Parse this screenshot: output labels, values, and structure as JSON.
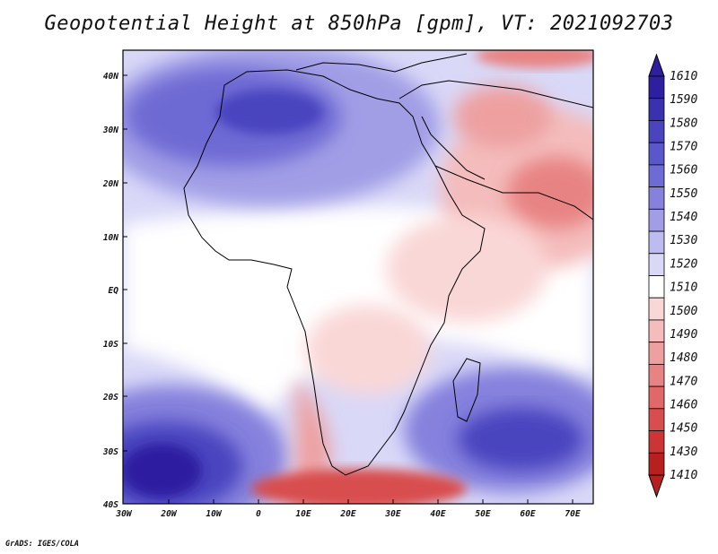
{
  "title": "Geopotential Height at 850hPa [gpm], VT: 2021092703",
  "footer": "GrADS: IGES/COLA",
  "map": {
    "lat_ticks": [
      "40N",
      "30N",
      "20N",
      "10N",
      "EQ",
      "10S",
      "20S",
      "30S",
      "40S"
    ],
    "lon_ticks": [
      "30W",
      "20W",
      "10W",
      "0",
      "10E",
      "20E",
      "30E",
      "40E",
      "50E",
      "60E",
      "70E"
    ]
  },
  "colorbar": {
    "levels": [
      "1610",
      "1590",
      "1580",
      "1570",
      "1560",
      "1550",
      "1540",
      "1530",
      "1520",
      "1510",
      "1500",
      "1490",
      "1480",
      "1470",
      "1460",
      "1450",
      "1430",
      "1410"
    ],
    "colors": [
      "#2e1fa0",
      "#3a31b0",
      "#4a44bf",
      "#5a57ca",
      "#6e6bd4",
      "#8581dd",
      "#a19ee6",
      "#bdbbef",
      "#d9d8f7",
      "#ffffff",
      "#fad7d7",
      "#f4bcbc",
      "#eea0a0",
      "#e88383",
      "#e06868",
      "#d84e4e",
      "#cc3535",
      "#b82020"
    ]
  },
  "legend_colors": {
    "deep_blue": "#2e1fa0",
    "mid_blue": "#6e6bd4",
    "light_blue": "#bdbbef",
    "white": "#ffffff",
    "light_red": "#f4bcbc",
    "mid_red": "#e06868",
    "deep_red": "#b82020"
  }
}
